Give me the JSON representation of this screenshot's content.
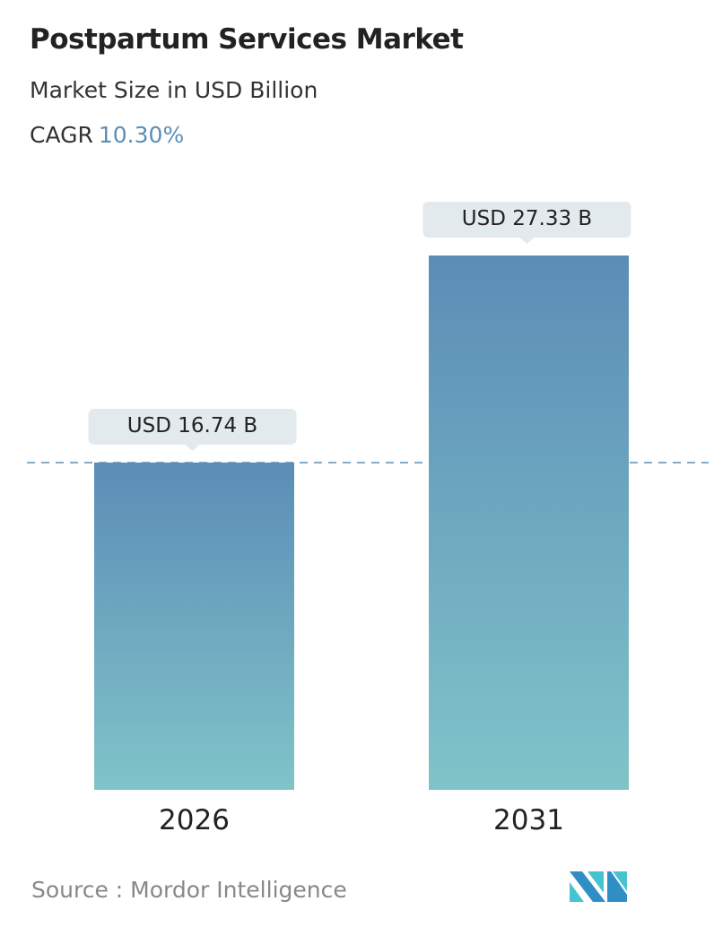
{
  "header": {
    "title": "Postpartum Services Market",
    "subtitle": "Market Size in USD Billion",
    "cagr_label": "CAGR",
    "cagr_value": "10.30%"
  },
  "chart_data": {
    "type": "bar",
    "categories": [
      "2026",
      "2031"
    ],
    "values": [
      16.74,
      27.33
    ],
    "data_labels": [
      "USD 16.74 B",
      "USD 27.33 B"
    ],
    "ylim": [
      0,
      27.33
    ],
    "grid": false,
    "reference_line": 16.74,
    "colors": {
      "bar_top": "#5b8db6",
      "bar_bottom": "#80c4c9",
      "accent": "#5b8fb5"
    }
  },
  "footer": {
    "source": "Source :  Mordor Intelligence",
    "logo_text": "Mordor Intelligence"
  }
}
